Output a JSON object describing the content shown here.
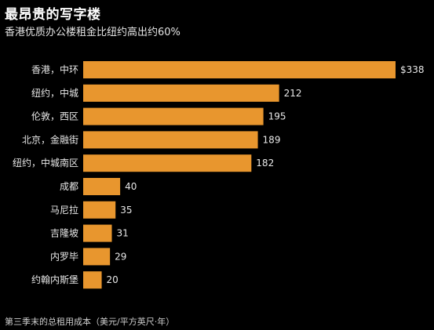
{
  "title": "最昂贵的写字楼",
  "subtitle": "香港优质办公楼租金比纽约高出约60%",
  "note": "第三季末的总租用成本（美元/平方英尺·年）",
  "colors": {
    "bar": "#e8962e",
    "background": "#000000",
    "text": "#e8e8e8"
  },
  "chart_data": {
    "type": "bar",
    "orientation": "horizontal",
    "categories": [
      "香港，中环",
      "纽约，中城",
      "伦敦，西区",
      "北京，金融街",
      "纽约，中城南区",
      "成都",
      "马尼拉",
      "吉隆坡",
      "内罗毕",
      "约翰内斯堡"
    ],
    "values": [
      338,
      212,
      195,
      189,
      182,
      40,
      35,
      31,
      29,
      20
    ],
    "value_labels": [
      "$338",
      "212",
      "195",
      "189",
      "182",
      "40",
      "35",
      "31",
      "29",
      "20"
    ],
    "title": "最昂贵的写字楼",
    "subtitle": "香港优质办公楼租金比纽约高出约60%",
    "xlabel": "",
    "ylabel": "",
    "xlim": [
      0,
      338
    ],
    "grid": false,
    "legend": "none"
  }
}
